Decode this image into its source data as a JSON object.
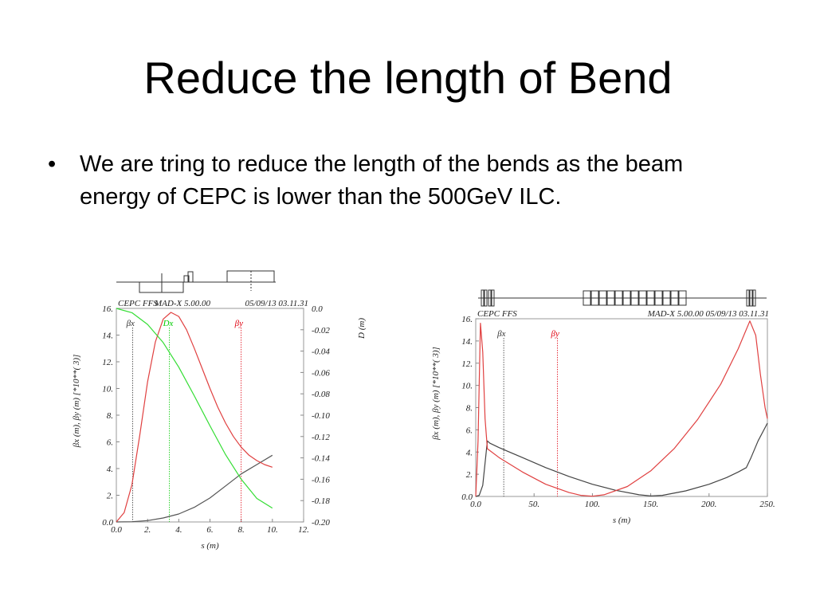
{
  "slide": {
    "title": "Reduce the length of Bend",
    "bullet_marker": "•",
    "bullet": "We are tring to reduce the length of the bends as the beam energy of CEPC is lower than the 500GeV ILC."
  },
  "chart_data": [
    {
      "type": "line",
      "header_left": "CEPC FFS",
      "header_mid": "MAD-X 5.00.00",
      "header_right": "05/09/13 03.11.31",
      "xlabel": "s (m)",
      "ylabel": "βx (m), βy (m)    [*10**( 3)]",
      "y2label": "D (m)",
      "xlim": [
        0,
        12
      ],
      "ylim": [
        0,
        16
      ],
      "y2lim": [
        -0.2,
        0
      ],
      "xticks": [
        "0.0",
        "2.",
        "4.",
        "6.",
        "8.",
        "10.",
        "12."
      ],
      "yticks": [
        "0.0",
        "2.",
        "4.",
        "6.",
        "8.",
        "10.",
        "12.",
        "14.",
        "16."
      ],
      "y2ticks": [
        "0.0",
        "-0.02",
        "-0.04",
        "-0.06",
        "-0.08",
        "-0.10",
        "-0.12",
        "-0.14",
        "-0.16",
        "-0.18",
        "-0.20"
      ],
      "legend_markers": [
        {
          "label": "βx",
          "x": 1.05,
          "color": "#333333"
        },
        {
          "label": "Dx",
          "x": 3.4,
          "color": "#00cc00"
        },
        {
          "label": "βy",
          "x": 8.0,
          "color": "#e0000f"
        }
      ],
      "series": [
        {
          "name": "βx",
          "color": "#555555",
          "x": [
            0,
            1,
            2,
            3,
            4,
            5,
            6,
            7,
            8,
            9,
            10
          ],
          "y": [
            0,
            0.02,
            0.1,
            0.3,
            0.6,
            1.1,
            1.8,
            2.7,
            3.6,
            4.3,
            5.0
          ]
        },
        {
          "name": "βy",
          "color": "#e04040",
          "x": [
            0,
            0.5,
            1,
            1.5,
            2,
            2.5,
            3,
            3.5,
            4,
            4.5,
            5,
            5.5,
            6,
            6.5,
            7,
            7.5,
            8,
            8.5,
            9,
            9.5,
            10
          ],
          "y": [
            0,
            0.7,
            2.8,
            6.5,
            10.5,
            13.5,
            15.2,
            15.7,
            15.4,
            14.4,
            13.0,
            11.5,
            10.0,
            8.6,
            7.4,
            6.4,
            5.6,
            5.0,
            4.6,
            4.3,
            4.1
          ]
        },
        {
          "name": "Dx",
          "color": "#33dd33",
          "axis": "y2",
          "x": [
            0,
            1,
            2,
            3,
            4,
            5,
            6,
            7,
            8,
            9,
            10
          ],
          "y": [
            0,
            -0.004,
            -0.015,
            -0.032,
            -0.055,
            -0.082,
            -0.11,
            -0.137,
            -0.16,
            -0.178,
            -0.187
          ]
        }
      ],
      "lattice": {
        "color": "#333333"
      }
    },
    {
      "type": "line",
      "header_left": "CEPC FFS",
      "header_right": "MAD-X 5.00.00  05/09/13 03.11.31",
      "xlabel": "s (m)",
      "ylabel": "βx (m), βy (m)    [*10**( 3)]",
      "xlim": [
        0,
        250
      ],
      "ylim": [
        0,
        16
      ],
      "xticks": [
        "0.0",
        "50.",
        "100.",
        "150.",
        "200.",
        "250."
      ],
      "yticks": [
        "0.0",
        "2.",
        "4.",
        "6.",
        "8.",
        "10.",
        "12.",
        "14.",
        "16."
      ],
      "legend_markers": [
        {
          "label": "βx",
          "x": 24,
          "color": "#333333"
        },
        {
          "label": "βy",
          "x": 70,
          "color": "#e0000f"
        }
      ],
      "series": [
        {
          "name": "βx",
          "color": "#444444",
          "x": [
            0,
            3,
            6,
            8,
            10,
            12,
            20,
            40,
            60,
            80,
            100,
            120,
            140,
            150,
            160,
            180,
            200,
            215,
            225,
            232,
            236,
            242,
            248,
            250
          ],
          "y": [
            0,
            0.1,
            1.0,
            3.0,
            5.0,
            4.8,
            4.4,
            3.5,
            2.6,
            1.8,
            1.1,
            0.55,
            0.15,
            0.05,
            0.1,
            0.5,
            1.1,
            1.7,
            2.2,
            2.6,
            3.5,
            5.0,
            6.2,
            6.6
          ]
        },
        {
          "name": "βy",
          "color": "#e04040",
          "x": [
            0,
            2,
            4,
            6,
            8,
            10,
            20,
            40,
            60,
            80,
            90,
            100,
            110,
            130,
            150,
            170,
            190,
            210,
            225,
            235,
            240,
            244,
            248,
            250
          ],
          "y": [
            0,
            5.0,
            15.6,
            13.0,
            7.0,
            4.3,
            3.5,
            2.2,
            1.1,
            0.35,
            0.1,
            0.02,
            0.15,
            0.9,
            2.3,
            4.3,
            6.9,
            10.1,
            13.3,
            15.8,
            14.5,
            11.0,
            8.0,
            7.0
          ]
        }
      ],
      "lattice": {
        "color": "#333333"
      }
    }
  ]
}
